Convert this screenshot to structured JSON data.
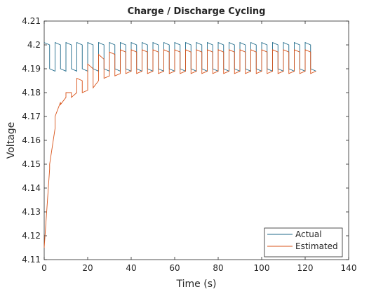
{
  "chart_data": {
    "type": "line",
    "title": "Charge / Discharge Cycling",
    "xlabel": "Time (s)",
    "ylabel": "Voltage",
    "x": [
      0,
      2.5,
      2.5,
      5,
      5,
      7.5,
      7.5,
      10,
      10,
      12.5,
      12.5,
      15,
      15,
      17.5,
      17.5,
      20,
      20,
      22.5,
      22.5,
      25,
      25,
      27.5,
      27.5,
      30,
      30,
      32.5,
      32.5,
      35,
      35,
      37.5,
      37.5,
      40,
      40,
      42.5,
      42.5,
      45,
      45,
      47.5,
      47.5,
      50,
      50,
      52.5,
      52.5,
      55,
      55,
      57.5,
      57.5,
      60,
      60,
      62.5,
      62.5,
      65,
      65,
      67.5,
      67.5,
      70,
      70,
      72.5,
      72.5,
      75,
      75,
      77.5,
      77.5,
      80,
      80,
      82.5,
      82.5,
      85,
      85,
      87.5,
      87.5,
      90,
      90,
      92.5,
      92.5,
      95,
      95,
      97.5,
      97.5,
      100,
      100,
      102.5,
      102.5,
      105,
      105,
      107.5,
      107.5,
      110,
      110,
      112.5,
      112.5,
      115,
      115,
      117.5,
      117.5,
      120,
      120,
      122.5,
      122.5,
      125
    ],
    "series": [
      {
        "name": "Actual",
        "color": "#1f6a8a",
        "values": [
          4.201,
          4.2,
          4.19,
          4.189,
          4.201,
          4.2,
          4.19,
          4.189,
          4.201,
          4.2,
          4.19,
          4.189,
          4.201,
          4.2,
          4.19,
          4.189,
          4.201,
          4.2,
          4.19,
          4.189,
          4.201,
          4.2,
          4.19,
          4.189,
          4.201,
          4.2,
          4.19,
          4.189,
          4.201,
          4.2,
          4.19,
          4.189,
          4.201,
          4.2,
          4.19,
          4.189,
          4.201,
          4.2,
          4.19,
          4.189,
          4.201,
          4.2,
          4.19,
          4.189,
          4.201,
          4.2,
          4.19,
          4.189,
          4.201,
          4.2,
          4.19,
          4.189,
          4.201,
          4.2,
          4.19,
          4.189,
          4.201,
          4.2,
          4.19,
          4.189,
          4.201,
          4.2,
          4.19,
          4.189,
          4.201,
          4.2,
          4.19,
          4.189,
          4.201,
          4.2,
          4.19,
          4.189,
          4.201,
          4.2,
          4.19,
          4.189,
          4.201,
          4.2,
          4.19,
          4.189,
          4.201,
          4.2,
          4.19,
          4.189,
          4.201,
          4.2,
          4.19,
          4.189,
          4.201,
          4.2,
          4.19,
          4.189,
          4.201,
          4.2,
          4.19,
          4.189,
          4.201,
          4.2,
          4.19,
          4.189
        ]
      },
      {
        "name": "Estimated",
        "color": "#d95319",
        "values": [
          4.115,
          4.148,
          4.15,
          4.165,
          4.17,
          4.176,
          4.175,
          4.178,
          4.18,
          4.18,
          4.178,
          4.18,
          4.186,
          4.185,
          4.18,
          4.181,
          4.192,
          4.19,
          4.182,
          4.185,
          4.196,
          4.194,
          4.186,
          4.187,
          4.197,
          4.196,
          4.187,
          4.188,
          4.198,
          4.197,
          4.188,
          4.189,
          4.198,
          4.197,
          4.188,
          4.189,
          4.198,
          4.197,
          4.188,
          4.189,
          4.198,
          4.197,
          4.188,
          4.189,
          4.198,
          4.197,
          4.188,
          4.189,
          4.198,
          4.197,
          4.188,
          4.189,
          4.198,
          4.197,
          4.188,
          4.189,
          4.198,
          4.197,
          4.188,
          4.189,
          4.198,
          4.197,
          4.188,
          4.189,
          4.198,
          4.197,
          4.188,
          4.189,
          4.198,
          4.197,
          4.188,
          4.189,
          4.198,
          4.197,
          4.188,
          4.189,
          4.198,
          4.197,
          4.188,
          4.189,
          4.198,
          4.197,
          4.188,
          4.189,
          4.198,
          4.197,
          4.188,
          4.189,
          4.198,
          4.197,
          4.188,
          4.189,
          4.198,
          4.197,
          4.188,
          4.189,
          4.198,
          4.197,
          4.188,
          4.189
        ]
      }
    ],
    "xlim": [
      0,
      140
    ],
    "xticks": [
      0,
      20,
      40,
      60,
      80,
      100,
      120,
      140
    ],
    "ylim": [
      4.11,
      4.21
    ],
    "yticks": [
      4.11,
      4.12,
      4.13,
      4.14,
      4.15,
      4.16,
      4.17,
      4.18,
      4.19,
      4.2,
      4.21
    ],
    "legend": "lower right"
  }
}
